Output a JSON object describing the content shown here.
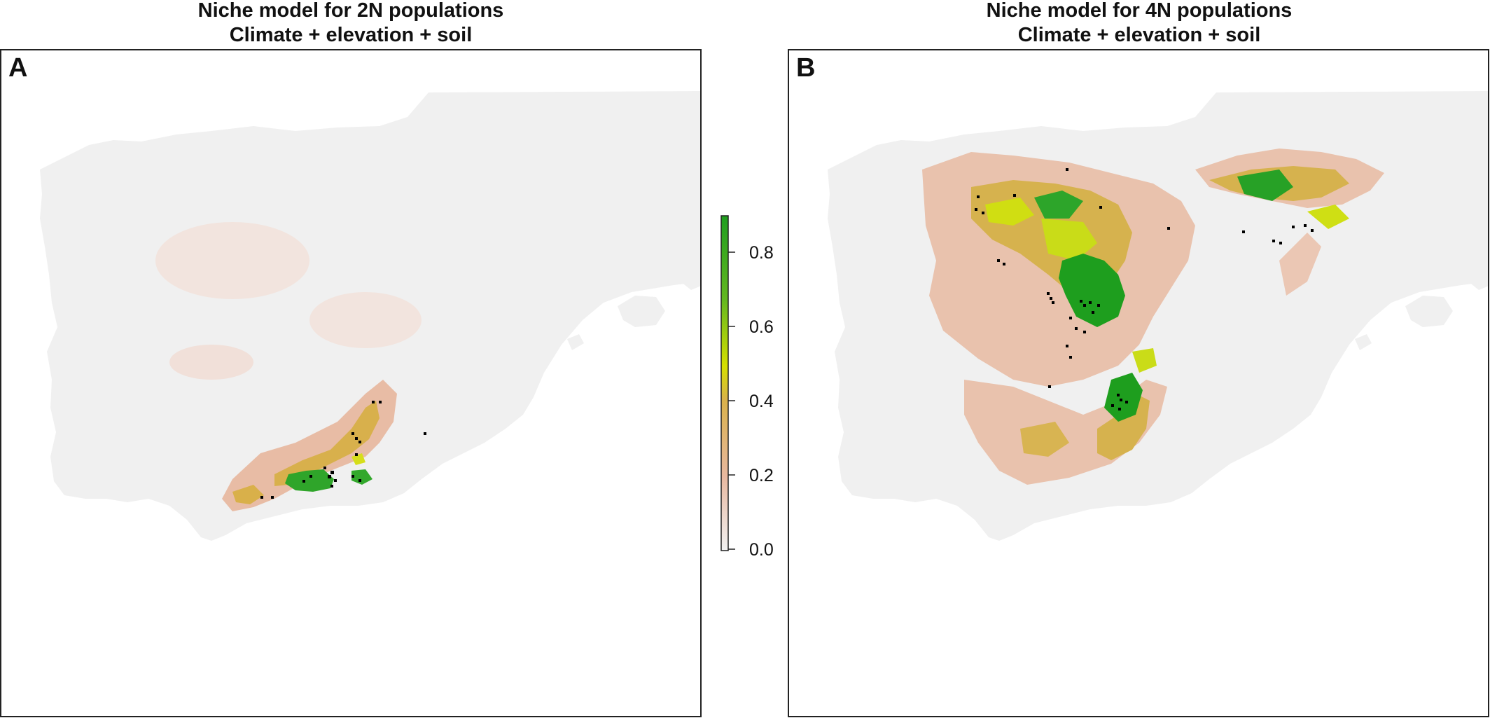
{
  "panels": [
    {
      "letter": "A",
      "title_line1": "Niche model for 2N populations",
      "title_line2": "Climate + elevation + soil"
    },
    {
      "letter": "B",
      "title_line1": "Niche model for 4N populations",
      "title_line2": "Climate + elevation + soil"
    }
  ],
  "legend": {
    "ticks": [
      "0.0",
      "0.2",
      "0.4",
      "0.6",
      "0.8"
    ],
    "colors": {
      "low": "#f2f2f2",
      "mid_low": "#e8b8a0",
      "mid": "#d9b24a",
      "mid_high": "#d6e000",
      "high": "#1f9e1f"
    }
  },
  "colors": {
    "land": "#f0f0f0",
    "occurrence": "#000000"
  }
}
